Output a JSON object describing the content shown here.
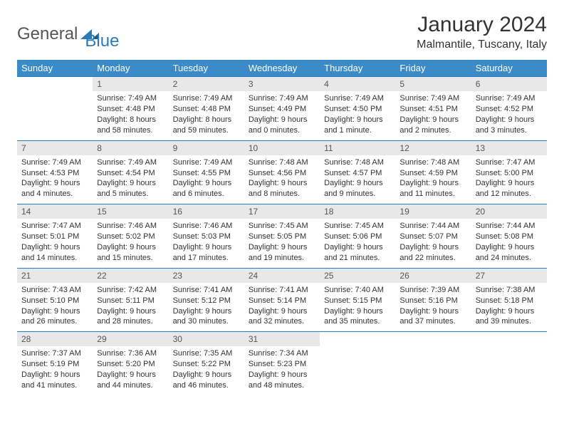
{
  "logo": {
    "general": "General",
    "blue": "Blue"
  },
  "title": "January 2024",
  "location": "Malmantile, Tuscany, Italy",
  "colors": {
    "header_bg": "#3b8bc8",
    "header_text": "#ffffff",
    "daynum_bg": "#e8e8e8",
    "border": "#2b7bb9",
    "text": "#333333",
    "logo_gray": "#555555",
    "logo_blue": "#2b7bb9",
    "page_bg": "#ffffff"
  },
  "weekdays": [
    "Sunday",
    "Monday",
    "Tuesday",
    "Wednesday",
    "Thursday",
    "Friday",
    "Saturday"
  ],
  "weeks": [
    [
      null,
      {
        "n": "1",
        "sr": "7:49 AM",
        "ss": "4:48 PM",
        "dl": "8 hours and 58 minutes."
      },
      {
        "n": "2",
        "sr": "7:49 AM",
        "ss": "4:48 PM",
        "dl": "8 hours and 59 minutes."
      },
      {
        "n": "3",
        "sr": "7:49 AM",
        "ss": "4:49 PM",
        "dl": "9 hours and 0 minutes."
      },
      {
        "n": "4",
        "sr": "7:49 AM",
        "ss": "4:50 PM",
        "dl": "9 hours and 1 minute."
      },
      {
        "n": "5",
        "sr": "7:49 AM",
        "ss": "4:51 PM",
        "dl": "9 hours and 2 minutes."
      },
      {
        "n": "6",
        "sr": "7:49 AM",
        "ss": "4:52 PM",
        "dl": "9 hours and 3 minutes."
      }
    ],
    [
      {
        "n": "7",
        "sr": "7:49 AM",
        "ss": "4:53 PM",
        "dl": "9 hours and 4 minutes."
      },
      {
        "n": "8",
        "sr": "7:49 AM",
        "ss": "4:54 PM",
        "dl": "9 hours and 5 minutes."
      },
      {
        "n": "9",
        "sr": "7:49 AM",
        "ss": "4:55 PM",
        "dl": "9 hours and 6 minutes."
      },
      {
        "n": "10",
        "sr": "7:48 AM",
        "ss": "4:56 PM",
        "dl": "9 hours and 8 minutes."
      },
      {
        "n": "11",
        "sr": "7:48 AM",
        "ss": "4:57 PM",
        "dl": "9 hours and 9 minutes."
      },
      {
        "n": "12",
        "sr": "7:48 AM",
        "ss": "4:59 PM",
        "dl": "9 hours and 11 minutes."
      },
      {
        "n": "13",
        "sr": "7:47 AM",
        "ss": "5:00 PM",
        "dl": "9 hours and 12 minutes."
      }
    ],
    [
      {
        "n": "14",
        "sr": "7:47 AM",
        "ss": "5:01 PM",
        "dl": "9 hours and 14 minutes."
      },
      {
        "n": "15",
        "sr": "7:46 AM",
        "ss": "5:02 PM",
        "dl": "9 hours and 15 minutes."
      },
      {
        "n": "16",
        "sr": "7:46 AM",
        "ss": "5:03 PM",
        "dl": "9 hours and 17 minutes."
      },
      {
        "n": "17",
        "sr": "7:45 AM",
        "ss": "5:05 PM",
        "dl": "9 hours and 19 minutes."
      },
      {
        "n": "18",
        "sr": "7:45 AM",
        "ss": "5:06 PM",
        "dl": "9 hours and 21 minutes."
      },
      {
        "n": "19",
        "sr": "7:44 AM",
        "ss": "5:07 PM",
        "dl": "9 hours and 22 minutes."
      },
      {
        "n": "20",
        "sr": "7:44 AM",
        "ss": "5:08 PM",
        "dl": "9 hours and 24 minutes."
      }
    ],
    [
      {
        "n": "21",
        "sr": "7:43 AM",
        "ss": "5:10 PM",
        "dl": "9 hours and 26 minutes."
      },
      {
        "n": "22",
        "sr": "7:42 AM",
        "ss": "5:11 PM",
        "dl": "9 hours and 28 minutes."
      },
      {
        "n": "23",
        "sr": "7:41 AM",
        "ss": "5:12 PM",
        "dl": "9 hours and 30 minutes."
      },
      {
        "n": "24",
        "sr": "7:41 AM",
        "ss": "5:14 PM",
        "dl": "9 hours and 32 minutes."
      },
      {
        "n": "25",
        "sr": "7:40 AM",
        "ss": "5:15 PM",
        "dl": "9 hours and 35 minutes."
      },
      {
        "n": "26",
        "sr": "7:39 AM",
        "ss": "5:16 PM",
        "dl": "9 hours and 37 minutes."
      },
      {
        "n": "27",
        "sr": "7:38 AM",
        "ss": "5:18 PM",
        "dl": "9 hours and 39 minutes."
      }
    ],
    [
      {
        "n": "28",
        "sr": "7:37 AM",
        "ss": "5:19 PM",
        "dl": "9 hours and 41 minutes."
      },
      {
        "n": "29",
        "sr": "7:36 AM",
        "ss": "5:20 PM",
        "dl": "9 hours and 44 minutes."
      },
      {
        "n": "30",
        "sr": "7:35 AM",
        "ss": "5:22 PM",
        "dl": "9 hours and 46 minutes."
      },
      {
        "n": "31",
        "sr": "7:34 AM",
        "ss": "5:23 PM",
        "dl": "9 hours and 48 minutes."
      },
      null,
      null,
      null
    ]
  ],
  "labels": {
    "sunrise": "Sunrise:",
    "sunset": "Sunset:",
    "daylight": "Daylight:"
  }
}
